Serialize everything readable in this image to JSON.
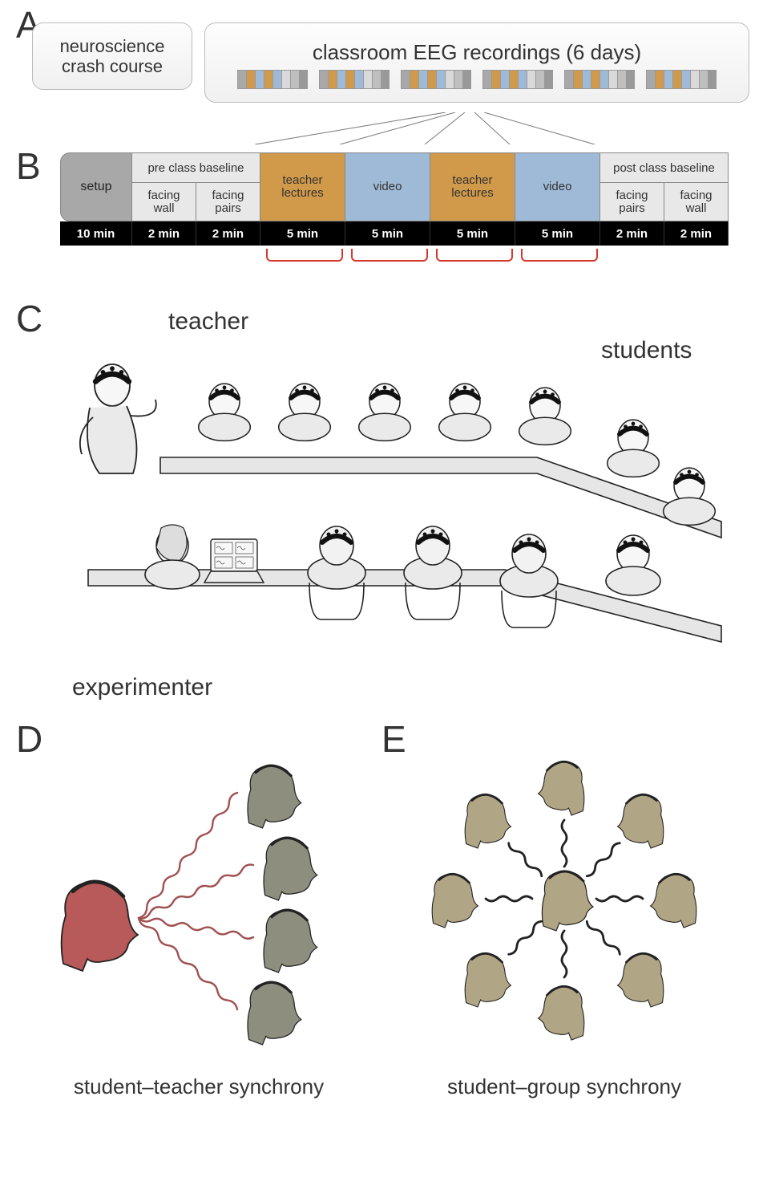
{
  "panelLabels": {
    "A": "A",
    "B": "B",
    "C": "C",
    "D": "D",
    "E": "E"
  },
  "panelA": {
    "crashCourse": {
      "line1": "neuroscience",
      "line2": "crash course"
    },
    "eegTitle": "classroom EEG recordings (6 days)",
    "miniDays": 6,
    "miniPattern": [
      "#a8a8a8",
      "#d19a4a",
      "#9fbad6",
      "#d19a4a",
      "#9fbad6",
      "#d9d9d9",
      "#bfbfbf",
      "#999999"
    ]
  },
  "panelB": {
    "segments": [
      {
        "kind": "setup",
        "label": "setup",
        "widthPx": 90,
        "bg": "#a8a8a8",
        "time": "10 min",
        "timeW": 90
      },
      {
        "kind": "split",
        "top": "pre class baseline",
        "halves": [
          "facing\nwall",
          "facing\npairs"
        ],
        "widthPx": 160,
        "bg": "#e8e8e8",
        "times": [
          "2 min",
          "2 min"
        ],
        "timeWs": [
          80,
          80
        ]
      },
      {
        "kind": "single",
        "label": "teacher\nlectures",
        "widthPx": 106,
        "bg": "#d19a4a",
        "time": "5 min",
        "timeW": 106
      },
      {
        "kind": "single",
        "label": "video",
        "widthPx": 106,
        "bg": "#9fbad6",
        "time": "5 min",
        "timeW": 106
      },
      {
        "kind": "single",
        "label": "teacher\nlectures",
        "widthPx": 106,
        "bg": "#d19a4a",
        "time": "5 min",
        "timeW": 106
      },
      {
        "kind": "single",
        "label": "video",
        "widthPx": 106,
        "bg": "#9fbad6",
        "time": "5 min",
        "timeW": 106
      },
      {
        "kind": "split",
        "top": "post class baseline",
        "halves": [
          "facing\npairs",
          "facing\nwall"
        ],
        "widthPx": 160,
        "bg": "#e8e8e8",
        "times": [
          "2 min",
          "2 min"
        ],
        "timeWs": [
          80,
          80
        ]
      }
    ],
    "brackets": [
      {
        "leftPx": 257,
        "widthPx": 96
      },
      {
        "leftPx": 363,
        "widthPx": 96
      },
      {
        "leftPx": 469,
        "widthPx": 96
      },
      {
        "leftPx": 575,
        "widthPx": 96
      }
    ],
    "bracketColor": "#d43a2a"
  },
  "panelC": {
    "labels": {
      "teacher": "teacher",
      "students": "students",
      "experimenter": "experimenter"
    },
    "labelFontSize": 30
  },
  "panelD": {
    "caption": "student–teacher synchrony",
    "teacherColor": "#b85a5a",
    "studentColor": "#8e8e7e",
    "waveColor": "#a05050",
    "nStudents": 4
  },
  "panelE": {
    "caption": "student–group synchrony",
    "headColor": "#b0a585",
    "waveColor": "#222222",
    "nOuter": 8
  },
  "colors": {
    "panelLabel": "#333333",
    "segBorder": "#888888",
    "miniBorder": "#999999",
    "timeBg": "#000000",
    "timeFg": "#ffffff",
    "boxBorder": "#bbbbbb",
    "background": "#ffffff"
  }
}
